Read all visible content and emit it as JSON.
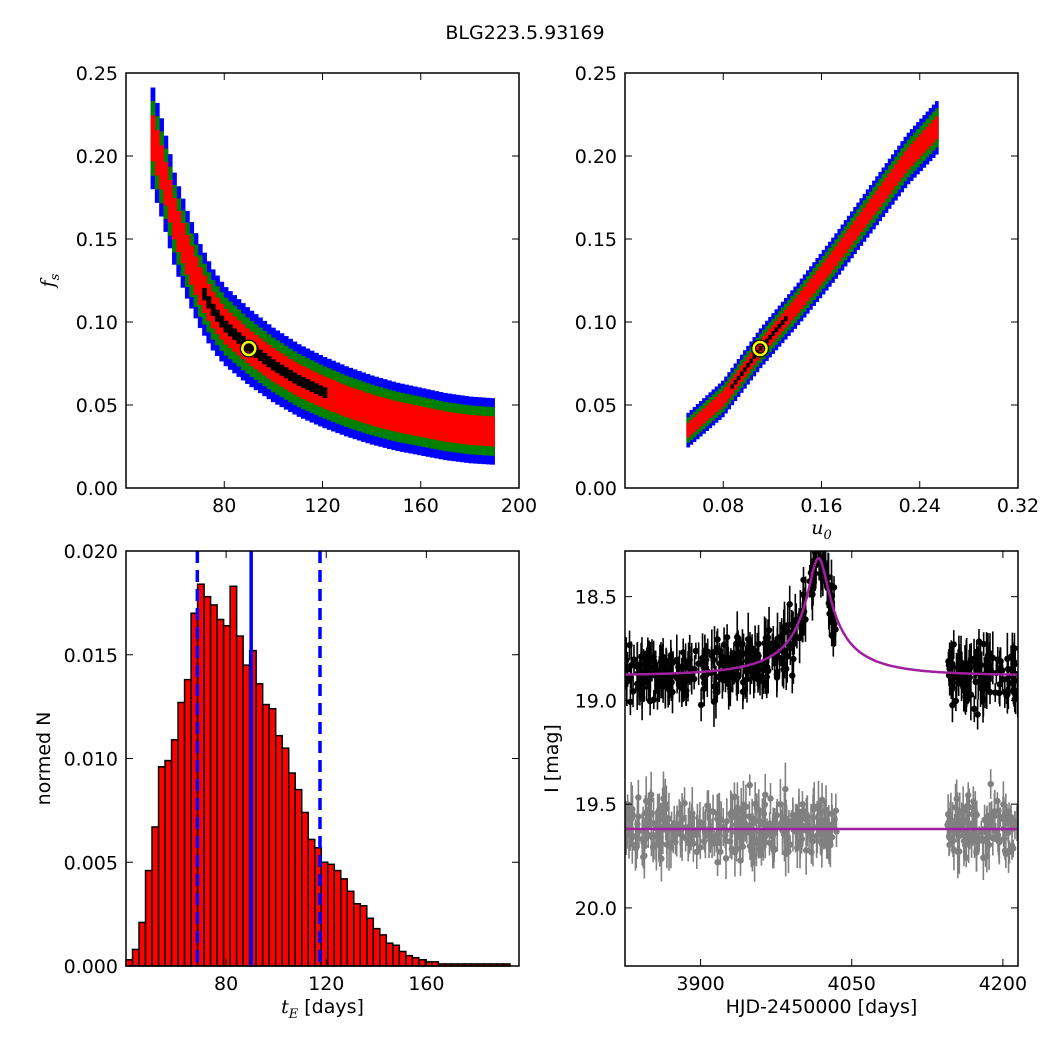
{
  "figure": {
    "title": "BLG223.5.93169"
  },
  "chart_data": [
    {
      "type": "heatmap",
      "panel": "top-left",
      "xlabel": "",
      "ylabel": "f_s",
      "xlim": [
        40,
        200
      ],
      "ylim": [
        0.0,
        0.25
      ],
      "xticks": [
        80,
        120,
        160,
        200
      ],
      "yticks": [
        0.0,
        0.05,
        0.1,
        0.15,
        0.2,
        0.25
      ],
      "ytick_labels": [
        "0.00",
        "0.05",
        "0.10",
        "0.15",
        "0.20",
        "0.25"
      ],
      "levels": [
        "3 sigma",
        "2 sigma",
        "1 sigma",
        "best"
      ],
      "level_colors": {
        "3 sigma": "#0000ff",
        "2 sigma": "#008000",
        "1 sigma": "#ff0000",
        "best": "#000000"
      },
      "ridge": [
        [
          50,
          0.215
        ],
        [
          55,
          0.19
        ],
        [
          60,
          0.16
        ],
        [
          65,
          0.14
        ],
        [
          70,
          0.122
        ],
        [
          75,
          0.108
        ],
        [
          80,
          0.098
        ],
        [
          90,
          0.085
        ],
        [
          100,
          0.074
        ],
        [
          110,
          0.065
        ],
        [
          120,
          0.058
        ],
        [
          130,
          0.052
        ],
        [
          140,
          0.047
        ],
        [
          150,
          0.043
        ],
        [
          160,
          0.04
        ],
        [
          170,
          0.037
        ],
        [
          180,
          0.035
        ],
        [
          190,
          0.034
        ]
      ],
      "best_fit": {
        "x": 90,
        "y": 0.084,
        "marker": "circle",
        "color": "#ffff00"
      }
    },
    {
      "type": "heatmap",
      "panel": "top-right",
      "xlabel": "u_0",
      "ylabel": "",
      "xlim": [
        0.0,
        0.32
      ],
      "ylim": [
        0.0,
        0.25
      ],
      "xticks": [
        0.08,
        0.16,
        0.24,
        0.32
      ],
      "xtick_labels": [
        "0.08",
        "0.16",
        "0.24",
        "0.32"
      ],
      "yticks": [
        0.0,
        0.05,
        0.1,
        0.15,
        0.2,
        0.25
      ],
      "ytick_labels": [
        "0.00",
        "0.05",
        "0.10",
        "0.15",
        "0.20",
        "0.25"
      ],
      "levels": [
        "3 sigma",
        "2 sigma",
        "1 sigma",
        "best"
      ],
      "level_colors": {
        "3 sigma": "#0000ff",
        "2 sigma": "#008000",
        "1 sigma": "#ff0000",
        "best": "#000000"
      },
      "ridge": [
        [
          0.05,
          0.034
        ],
        [
          0.08,
          0.054
        ],
        [
          0.11,
          0.084
        ],
        [
          0.14,
          0.11
        ],
        [
          0.17,
          0.138
        ],
        [
          0.2,
          0.168
        ],
        [
          0.23,
          0.198
        ],
        [
          0.255,
          0.218
        ]
      ],
      "best_fit": {
        "x": 0.11,
        "y": 0.084,
        "marker": "circle",
        "color": "#ffff00"
      }
    },
    {
      "type": "bar",
      "panel": "bottom-left",
      "xlabel": "t_E  [days]",
      "ylabel": "normed N",
      "xlim": [
        40,
        197
      ],
      "ylim": [
        0.0,
        0.02
      ],
      "xticks": [
        80,
        120,
        160
      ],
      "yticks": [
        0.0,
        0.005,
        0.01,
        0.015,
        0.02
      ],
      "ytick_labels": [
        "0.000",
        "0.005",
        "0.010",
        "0.015",
        "0.020"
      ],
      "bin_width": 2.6,
      "bin_start": 40,
      "values": [
        0.0003,
        0.0008,
        0.0021,
        0.0046,
        0.0067,
        0.0096,
        0.0099,
        0.0109,
        0.0127,
        0.0138,
        0.017,
        0.0184,
        0.0178,
        0.0174,
        0.0167,
        0.0164,
        0.0183,
        0.0159,
        0.0145,
        0.0152,
        0.0136,
        0.0126,
        0.0124,
        0.0111,
        0.0105,
        0.0093,
        0.0085,
        0.0074,
        0.0061,
        0.0057,
        0.005,
        0.0049,
        0.0046,
        0.0042,
        0.0036,
        0.003,
        0.0029,
        0.0023,
        0.0018,
        0.0015,
        0.0011,
        0.001,
        0.0007,
        0.0005,
        0.0004,
        0.0003,
        0.0002,
        0.0002,
        0.0001,
        0.0001,
        0.0001,
        0.0001,
        0.0001,
        0.0001,
        0.0001,
        0.0001,
        0.0001,
        0.0001,
        0.0001
      ],
      "bar_color": "#ff0000",
      "vlines": [
        {
          "x": 68.5,
          "style": "dashed",
          "color": "#0000ff"
        },
        {
          "x": 90,
          "style": "solid",
          "color": "#0000ff"
        },
        {
          "x": 117.5,
          "style": "dashed",
          "color": "#0000ff"
        }
      ]
    },
    {
      "type": "scatter",
      "panel": "bottom-right",
      "xlabel": "HJD-2450000 [days]",
      "ylabel": "I [mag]",
      "xlim": [
        3825,
        4215
      ],
      "ylim": [
        20.28,
        18.28
      ],
      "y_inverted": true,
      "xticks": [
        3900,
        4050,
        4200
      ],
      "yticks": [
        18.5,
        19.0,
        19.5,
        20.0
      ],
      "ytick_labels": [
        "18.5",
        "19.0",
        "19.5",
        "20.0"
      ],
      "series": [
        {
          "role": "data",
          "color": "#000000",
          "baseline": 18.88,
          "scatter": 0.12,
          "x_ranges": [
            [
              3825,
              4035
            ],
            [
              4145,
              4215
            ]
          ]
        },
        {
          "role": "residuals",
          "color": "#808080",
          "baseline": 19.62,
          "scatter": 0.12,
          "x_ranges": [
            [
              3825,
              4035
            ],
            [
              4145,
              4215
            ]
          ]
        },
        {
          "role": "model",
          "type": "line",
          "color": "#a020a0",
          "t0": 4017,
          "tE": 90,
          "u0": 0.11,
          "fs": 0.084,
          "base_mag": 18.88
        },
        {
          "role": "residual-model",
          "type": "line",
          "color": "#a020a0",
          "y": 19.62
        }
      ]
    }
  ]
}
